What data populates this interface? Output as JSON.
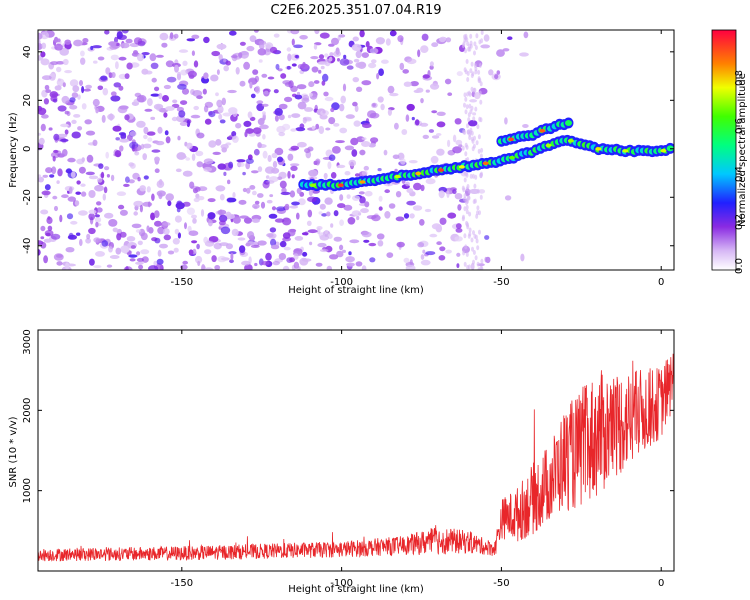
{
  "title": "C2E6.2025.351.07.04.R19",
  "chart_data": [
    {
      "type": "heatmap",
      "title": "C2E6.2025.351.07.04.R19",
      "xlabel": "Height of straight line (km)",
      "ylabel": "Frequency (Hz)",
      "xlim": [
        -195,
        4
      ],
      "ylim": [
        -50,
        49
      ],
      "xticks": [
        -150,
        -100,
        -50,
        0
      ],
      "yticks": [
        -40,
        -20,
        0,
        20,
        40
      ],
      "colorbar": {
        "label": "Normalized spectral amplitude",
        "range": [
          0,
          1
        ],
        "ticks": [
          "0.0",
          "0.2",
          "0.4",
          "0.6",
          "0.8"
        ]
      },
      "ridge": {
        "description": "main spectral ridge (Frequency vs Height)",
        "x": [
          -112,
          -100,
          -90,
          -80,
          -70,
          -60,
          -50,
          -40,
          -30,
          -25,
          -20,
          -10,
          0,
          3
        ],
        "y": [
          -15,
          -15,
          -13,
          -11,
          -9,
          -7,
          -5,
          -1,
          4,
          2,
          0,
          -1,
          -1,
          0
        ]
      },
      "upper_branch": {
        "x": [
          -50,
          -40,
          -34,
          -28
        ],
        "y": [
          3,
          6,
          9,
          11
        ]
      },
      "noise_region_xmax": -52
    },
    {
      "type": "line",
      "xlabel": "Height of straight line (km)",
      "ylabel": "SNR (10 * v/v)",
      "xlim": [
        -195,
        4
      ],
      "ylim": [
        0,
        3000
      ],
      "xticks": [
        -150,
        -100,
        -50,
        0
      ],
      "yticks": [
        1000,
        2000,
        3000
      ],
      "color": "#e8262a",
      "envelope": {
        "x": [
          -195,
          -150,
          -100,
          -80,
          -70,
          -60,
          -55,
          -52,
          -50,
          -45,
          -40,
          -35,
          -30,
          -25,
          -20,
          -10,
          0,
          4
        ],
        "mean": [
          200,
          220,
          270,
          320,
          380,
          360,
          300,
          280,
          650,
          700,
          900,
          1100,
          1400,
          1500,
          1700,
          1900,
          2100,
          2400
        ],
        "amplitude": [
          80,
          90,
          100,
          120,
          180,
          140,
          100,
          100,
          250,
          350,
          450,
          500,
          650,
          750,
          800,
          600,
          450,
          400
        ]
      }
    }
  ]
}
